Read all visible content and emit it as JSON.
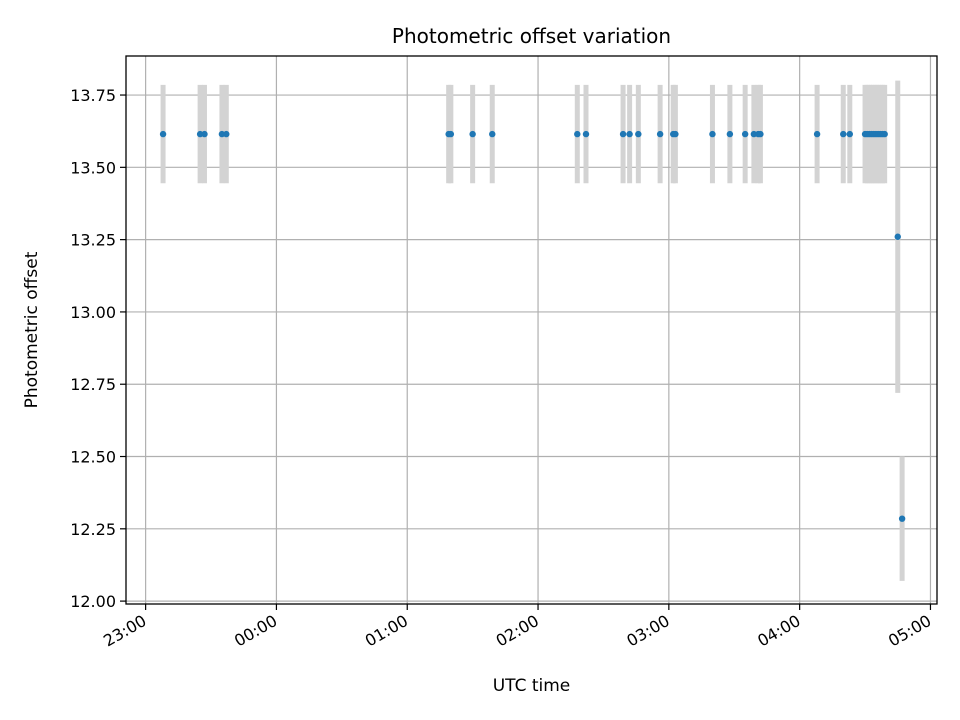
{
  "chart_data": {
    "type": "scatter",
    "title": "Photometric offset variation",
    "xlabel": "UTC time",
    "ylabel": "Photometric offset",
    "x_range": [
      "22:51",
      "05:03"
    ],
    "ylim": [
      11.99,
      13.885
    ],
    "x_ticks": [
      "23:00",
      "00:00",
      "01:00",
      "02:00",
      "03:00",
      "04:00",
      "05:00"
    ],
    "y_ticks": [
      12.0,
      12.25,
      12.5,
      12.75,
      13.0,
      13.25,
      13.5,
      13.75
    ],
    "grid": true,
    "marker_color": "#1f77b4",
    "error_color": "#d3d3d3",
    "points": [
      {
        "x": "23:08",
        "y": 13.615,
        "err": 0.17
      },
      {
        "x": "23:25",
        "y": 13.615,
        "err": 0.17
      },
      {
        "x": "23:27",
        "y": 13.615,
        "err": 0.17
      },
      {
        "x": "23:35",
        "y": 13.615,
        "err": 0.17
      },
      {
        "x": "23:37",
        "y": 13.615,
        "err": 0.17
      },
      {
        "x": "01:19",
        "y": 13.615,
        "err": 0.17
      },
      {
        "x": "01:20",
        "y": 13.615,
        "err": 0.17
      },
      {
        "x": "01:30",
        "y": 13.615,
        "err": 0.17
      },
      {
        "x": "01:39",
        "y": 13.615,
        "err": 0.17
      },
      {
        "x": "02:18",
        "y": 13.615,
        "err": 0.17
      },
      {
        "x": "02:22",
        "y": 13.615,
        "err": 0.17
      },
      {
        "x": "02:39",
        "y": 13.615,
        "err": 0.17
      },
      {
        "x": "02:42",
        "y": 13.615,
        "err": 0.17
      },
      {
        "x": "02:46",
        "y": 13.615,
        "err": 0.17
      },
      {
        "x": "02:56",
        "y": 13.615,
        "err": 0.17
      },
      {
        "x": "03:02",
        "y": 13.615,
        "err": 0.17
      },
      {
        "x": "03:03",
        "y": 13.615,
        "err": 0.17
      },
      {
        "x": "03:20",
        "y": 13.615,
        "err": 0.17
      },
      {
        "x": "03:28",
        "y": 13.615,
        "err": 0.17
      },
      {
        "x": "03:35",
        "y": 13.615,
        "err": 0.17
      },
      {
        "x": "03:39",
        "y": 13.615,
        "err": 0.17
      },
      {
        "x": "03:41",
        "y": 13.615,
        "err": 0.17
      },
      {
        "x": "03:42",
        "y": 13.615,
        "err": 0.17
      },
      {
        "x": "04:08",
        "y": 13.615,
        "err": 0.17
      },
      {
        "x": "04:20",
        "y": 13.615,
        "err": 0.17
      },
      {
        "x": "04:23",
        "y": 13.615,
        "err": 0.17
      },
      {
        "x": "04:30",
        "y": 13.615,
        "err": 0.17
      },
      {
        "x": "04:31",
        "y": 13.615,
        "err": 0.17
      },
      {
        "x": "04:32",
        "y": 13.615,
        "err": 0.17
      },
      {
        "x": "04:33",
        "y": 13.615,
        "err": 0.17
      },
      {
        "x": "04:34",
        "y": 13.615,
        "err": 0.17
      },
      {
        "x": "04:35",
        "y": 13.615,
        "err": 0.17
      },
      {
        "x": "04:36",
        "y": 13.615,
        "err": 0.17
      },
      {
        "x": "04:37",
        "y": 13.615,
        "err": 0.17
      },
      {
        "x": "04:38",
        "y": 13.615,
        "err": 0.17
      },
      {
        "x": "04:39",
        "y": 13.615,
        "err": 0.17
      },
      {
        "x": "04:45",
        "y": 13.26,
        "err": 0.54
      },
      {
        "x": "04:47",
        "y": 12.285,
        "err": 0.215
      }
    ]
  }
}
